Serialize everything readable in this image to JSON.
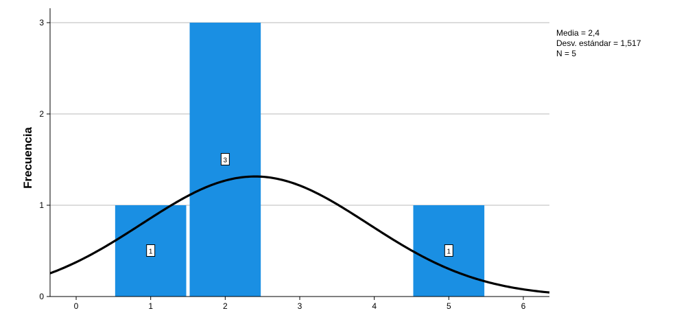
{
  "chart_data": {
    "type": "bar",
    "title": "",
    "xlabel": "",
    "ylabel": "Frecuencia",
    "bins": [
      {
        "x": 1,
        "value": 1,
        "label": "1"
      },
      {
        "x": 2,
        "value": 3,
        "label": "3"
      },
      {
        "x": 5,
        "value": 1,
        "label": "1"
      }
    ],
    "x_ticks": [
      "0",
      "1",
      "2",
      "3",
      "4",
      "5",
      "6"
    ],
    "y_ticks": [
      "0",
      "1",
      "2",
      "3"
    ],
    "xlim": [
      -0.35,
      6.35
    ],
    "ylim": [
      0,
      3
    ],
    "grid": true,
    "normal_curve": {
      "mean": 2.4,
      "sd": 1.517,
      "n": 5
    },
    "stats": {
      "mean_text": "Media = 2,4",
      "sd_text": "Desv. estándar = 1,517",
      "n_text": "N = 5"
    },
    "colors": {
      "bar": "#1a8fe3",
      "grid": "#c8c8c8",
      "curve": "#000000"
    }
  }
}
